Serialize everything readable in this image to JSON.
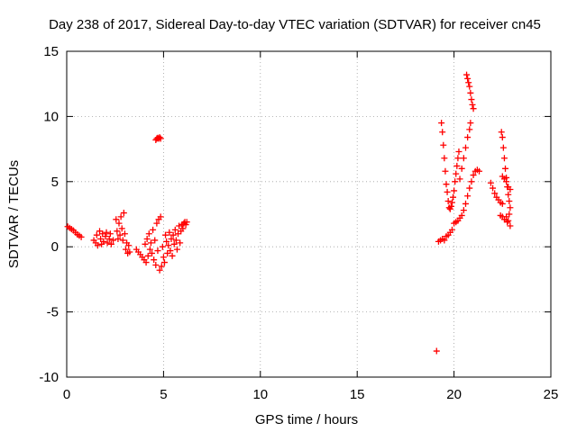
{
  "chart_data": {
    "type": "scatter",
    "title": "Day 238 of 2017, Sidereal Day-to-day VTEC variation (SDTVAR) for receiver cn45",
    "xlabel": "GPS time / hours",
    "ylabel": "SDTVAR / TECUs",
    "xlim": [
      0,
      25
    ],
    "ylim": [
      -10,
      15
    ],
    "xticks": [
      0,
      5,
      10,
      15,
      20,
      25
    ],
    "yticks": [
      -10,
      -5,
      0,
      5,
      10,
      15
    ],
    "xtick_labels": [
      "0",
      "5",
      "10",
      "15",
      "20",
      "25"
    ],
    "ytick_labels": [
      "-10",
      "-5",
      "0",
      "5",
      "10",
      "15"
    ],
    "grid": true,
    "marker": "+",
    "series": [
      {
        "name": "SDTVAR",
        "color": "#ff0000",
        "points": [
          [
            0.05,
            1.55
          ],
          [
            0.15,
            1.45
          ],
          [
            0.25,
            1.35
          ],
          [
            0.35,
            1.25
          ],
          [
            0.45,
            1.1
          ],
          [
            0.55,
            0.95
          ],
          [
            0.65,
            0.85
          ],
          [
            0.75,
            0.75
          ],
          [
            1.4,
            0.5
          ],
          [
            1.5,
            0.3
          ],
          [
            1.55,
            0.9
          ],
          [
            1.6,
            0.1
          ],
          [
            1.7,
            1.2
          ],
          [
            1.75,
            0.6
          ],
          [
            1.8,
            0.2
          ],
          [
            1.85,
            1.0
          ],
          [
            1.9,
            0.4
          ],
          [
            2.0,
            0.8
          ],
          [
            2.05,
            1.1
          ],
          [
            2.1,
            0.3
          ],
          [
            2.2,
            0.6
          ],
          [
            2.25,
            1.0
          ],
          [
            2.3,
            0.2
          ],
          [
            2.4,
            0.5
          ],
          [
            2.55,
            2.1
          ],
          [
            2.6,
            1.2
          ],
          [
            2.65,
            0.6
          ],
          [
            2.7,
            1.8
          ],
          [
            2.75,
            0.9
          ],
          [
            2.8,
            2.3
          ],
          [
            2.85,
            1.4
          ],
          [
            2.9,
            0.5
          ],
          [
            2.95,
            2.6
          ],
          [
            3.0,
            1.0
          ],
          [
            3.05,
            -0.2
          ],
          [
            3.1,
            0.3
          ],
          [
            3.15,
            -0.5
          ],
          [
            3.2,
            0.1
          ],
          [
            3.25,
            -0.4
          ],
          [
            3.6,
            -0.2
          ],
          [
            3.7,
            -0.4
          ],
          [
            3.8,
            -0.6
          ],
          [
            3.9,
            -0.8
          ],
          [
            4.0,
            -1.0
          ],
          [
            4.05,
            0.2
          ],
          [
            4.1,
            -1.2
          ],
          [
            4.15,
            0.6
          ],
          [
            4.2,
            -0.7
          ],
          [
            4.25,
            1.0
          ],
          [
            4.3,
            -0.2
          ],
          [
            4.35,
            0.3
          ],
          [
            4.4,
            -0.5
          ],
          [
            4.45,
            1.3
          ],
          [
            4.5,
            -1.0
          ],
          [
            4.55,
            0.5
          ],
          [
            4.6,
            -1.4
          ],
          [
            4.65,
            1.8
          ],
          [
            4.7,
            -0.3
          ],
          [
            4.75,
            2.1
          ],
          [
            4.8,
            -1.8
          ],
          [
            4.85,
            2.3
          ],
          [
            4.9,
            -1.5
          ],
          [
            4.95,
            0.0
          ],
          [
            5.0,
            -0.8
          ],
          [
            5.05,
            -1.2
          ],
          [
            4.6,
            8.2
          ],
          [
            4.65,
            8.3
          ],
          [
            4.7,
            8.35
          ],
          [
            4.75,
            8.3
          ],
          [
            4.8,
            8.4
          ],
          [
            4.85,
            8.3
          ],
          [
            5.1,
            0.9
          ],
          [
            5.15,
            0.4
          ],
          [
            5.2,
            -0.5
          ],
          [
            5.25,
            0.1
          ],
          [
            5.3,
            1.1
          ],
          [
            5.35,
            -0.3
          ],
          [
            5.4,
            0.6
          ],
          [
            5.45,
            -0.7
          ],
          [
            5.5,
            0.9
          ],
          [
            5.55,
            0.2
          ],
          [
            5.6,
            1.3
          ],
          [
            5.65,
            0.5
          ],
          [
            5.7,
            -0.2
          ],
          [
            5.75,
            1.0
          ],
          [
            5.8,
            1.6
          ],
          [
            5.85,
            0.3
          ],
          [
            5.9,
            1.2
          ],
          [
            5.95,
            1.7
          ],
          [
            6.0,
            1.4
          ],
          [
            6.05,
            1.8
          ],
          [
            6.1,
            1.9
          ],
          [
            6.15,
            1.7
          ],
          [
            6.2,
            1.9
          ],
          [
            19.1,
            -8.0
          ],
          [
            19.2,
            0.4
          ],
          [
            19.3,
            0.5
          ],
          [
            19.4,
            0.6
          ],
          [
            19.5,
            0.5
          ],
          [
            19.6,
            0.8
          ],
          [
            19.7,
            0.9
          ],
          [
            19.8,
            1.1
          ],
          [
            19.9,
            1.3
          ],
          [
            19.35,
            9.5
          ],
          [
            19.4,
            8.8
          ],
          [
            19.45,
            7.8
          ],
          [
            19.5,
            6.8
          ],
          [
            19.55,
            5.8
          ],
          [
            19.6,
            4.8
          ],
          [
            19.65,
            4.2
          ],
          [
            19.7,
            3.5
          ],
          [
            19.75,
            3.0
          ],
          [
            19.8,
            2.9
          ],
          [
            19.85,
            3.1
          ],
          [
            19.9,
            3.4
          ],
          [
            19.95,
            3.8
          ],
          [
            20.0,
            4.3
          ],
          [
            20.05,
            5.0
          ],
          [
            20.1,
            5.6
          ],
          [
            20.15,
            6.2
          ],
          [
            20.2,
            6.8
          ],
          [
            20.25,
            7.3
          ],
          [
            20.0,
            1.8
          ],
          [
            20.1,
            1.9
          ],
          [
            20.2,
            2.0
          ],
          [
            20.3,
            2.2
          ],
          [
            20.4,
            2.4
          ],
          [
            20.5,
            2.8
          ],
          [
            20.6,
            3.3
          ],
          [
            20.7,
            3.9
          ],
          [
            20.8,
            4.5
          ],
          [
            20.9,
            5.0
          ],
          [
            21.0,
            5.5
          ],
          [
            21.1,
            5.8
          ],
          [
            21.2,
            5.9
          ],
          [
            21.3,
            5.8
          ],
          [
            20.3,
            5.2
          ],
          [
            20.4,
            6.0
          ],
          [
            20.5,
            6.8
          ],
          [
            20.6,
            7.6
          ],
          [
            20.7,
            8.4
          ],
          [
            20.8,
            9.0
          ],
          [
            20.85,
            9.5
          ],
          [
            20.65,
            13.2
          ],
          [
            20.7,
            12.9
          ],
          [
            20.75,
            12.6
          ],
          [
            20.8,
            12.3
          ],
          [
            20.85,
            11.8
          ],
          [
            20.9,
            11.3
          ],
          [
            20.95,
            10.9
          ],
          [
            21.0,
            10.6
          ],
          [
            21.9,
            4.9
          ],
          [
            22.0,
            4.5
          ],
          [
            22.1,
            4.1
          ],
          [
            22.2,
            3.8
          ],
          [
            22.3,
            3.6
          ],
          [
            22.4,
            3.4
          ],
          [
            22.5,
            3.3
          ],
          [
            22.45,
            8.8
          ],
          [
            22.5,
            8.4
          ],
          [
            22.55,
            7.6
          ],
          [
            22.6,
            6.8
          ],
          [
            22.65,
            6.0
          ],
          [
            22.7,
            5.3
          ],
          [
            22.75,
            4.6
          ],
          [
            22.8,
            4.0
          ],
          [
            22.85,
            3.5
          ],
          [
            22.9,
            3.0
          ],
          [
            22.4,
            2.4
          ],
          [
            22.5,
            2.3
          ],
          [
            22.6,
            2.1
          ],
          [
            22.7,
            2.3
          ],
          [
            22.75,
            1.9
          ],
          [
            22.8,
            2.0
          ],
          [
            22.85,
            2.5
          ],
          [
            22.9,
            1.6
          ],
          [
            22.5,
            5.4
          ],
          [
            22.6,
            5.2
          ],
          [
            22.7,
            5.0
          ],
          [
            22.8,
            4.6
          ],
          [
            22.9,
            4.4
          ]
        ]
      }
    ]
  }
}
